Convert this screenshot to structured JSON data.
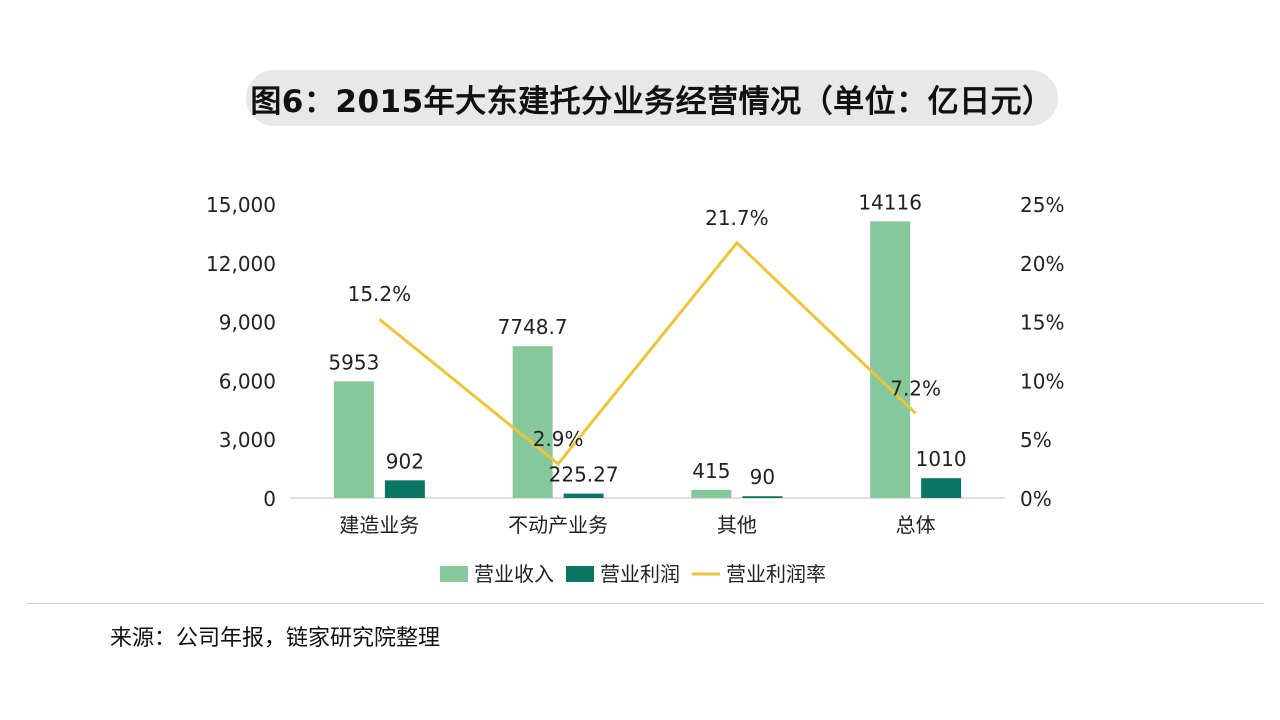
{
  "title": "图6：2015年大东建托分业务经营情况（单位：亿日元）",
  "source": "来源：公司年报，链家研究院整理",
  "colors": {
    "revenue": "#86c79c",
    "profit": "#0b7664",
    "margin": "#ecc53a"
  },
  "chart_data": {
    "type": "bar",
    "categories": [
      "建造业务",
      "不动产业务",
      "其他",
      "总体"
    ],
    "series": [
      {
        "name": "营业收入",
        "type": "bar",
        "axis": "left",
        "values": [
          5953,
          7748.7,
          415,
          14116
        ],
        "labels": [
          "5953",
          "7748.7",
          "415",
          "14116"
        ]
      },
      {
        "name": "营业利润",
        "type": "bar",
        "axis": "left",
        "values": [
          902,
          225.27,
          90,
          1010
        ],
        "labels": [
          "902",
          "225.27",
          "90",
          "1010"
        ]
      },
      {
        "name": "营业利润率",
        "type": "line",
        "axis": "right",
        "values": [
          15.2,
          2.9,
          21.7,
          7.2
        ],
        "labels": [
          "15.2%",
          "2.9%",
          "21.7%",
          "7.2%"
        ]
      }
    ],
    "y_left": {
      "min": 0,
      "max": 15000,
      "ticks": [
        0,
        3000,
        6000,
        9000,
        12000,
        15000
      ],
      "tick_labels": [
        "0",
        "3,000",
        "6,000",
        "9,000",
        "12,000",
        "15,000"
      ]
    },
    "y_right": {
      "min": 0,
      "max": 25,
      "ticks": [
        0,
        5,
        10,
        15,
        20,
        25
      ],
      "tick_labels": [
        "0%",
        "5%",
        "10%",
        "15%",
        "20%",
        "25%"
      ]
    },
    "grid": false,
    "legend_position": "bottom"
  }
}
